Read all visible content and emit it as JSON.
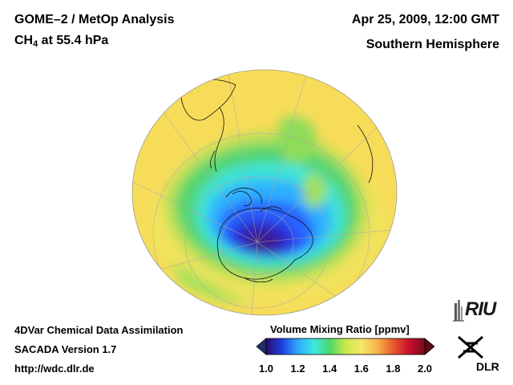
{
  "header": {
    "title": "GOME–2 / MetOp Analysis",
    "species_base": "CH",
    "species_sub": "4",
    "species_rest": " at 55.4 hPa",
    "date": "Apr 25, 2009, 12:00 GMT",
    "hemisphere": "Southern Hemisphere"
  },
  "footer": {
    "line1": "4DVar Chemical Data Assimilation",
    "line2": "SACADA Version 1.7",
    "line3": "http://wdc.dlr.de"
  },
  "colorbar": {
    "title": "Volume Mixing Ratio [ppmv]",
    "ticks": [
      "1.0",
      "1.2",
      "1.4",
      "1.6",
      "1.8",
      "2.0"
    ],
    "min": 1.0,
    "max": 2.0,
    "colors": [
      "#2a0d6e",
      "#1f3fe0",
      "#2ea8ff",
      "#3fe8e0",
      "#4bd86a",
      "#c8e84a",
      "#f5e66a",
      "#f8b44a",
      "#ea5a2a",
      "#c8102e",
      "#7a0a1a"
    ]
  },
  "logos": {
    "riu": "RIU",
    "dlr": "DLR"
  },
  "map": {
    "background_value": "~1.6 ppmv (yellow)",
    "polar_minimum_value": "~1.0 ppmv (dark blue/purple)"
  }
}
